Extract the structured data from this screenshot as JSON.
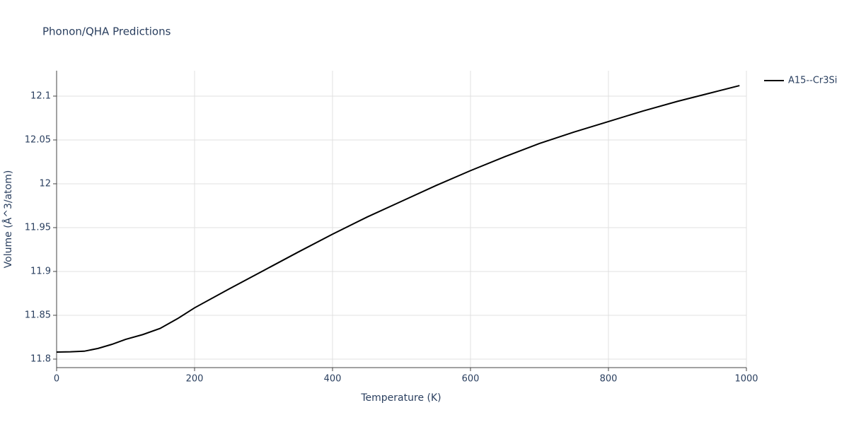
{
  "chart_data": {
    "type": "line",
    "title": "Phonon/QHA Predictions",
    "x_label": "Temperature (K)",
    "y_label": "Volume (Å^3/atom)",
    "x": [
      0,
      20,
      40,
      60,
      80,
      100,
      125,
      150,
      175,
      200,
      250,
      300,
      350,
      400,
      450,
      500,
      550,
      600,
      650,
      700,
      750,
      800,
      850,
      900,
      950,
      990
    ],
    "series": [
      {
        "name": "A15--Cr3Si",
        "color": "#000000",
        "values": [
          11.808,
          11.8083,
          11.809,
          11.8122,
          11.8168,
          11.8225,
          11.828,
          11.835,
          11.846,
          11.8585,
          11.88,
          11.901,
          11.922,
          11.9425,
          11.962,
          11.98,
          11.998,
          12.015,
          12.031,
          12.046,
          12.059,
          12.071,
          12.083,
          12.094,
          12.104,
          12.112
        ]
      }
    ],
    "xlim": [
      0,
      1000
    ],
    "xticks": [
      0,
      200,
      400,
      600,
      800,
      1000
    ],
    "ylim": [
      11.7903,
      12.129
    ],
    "yticks": [
      11.8,
      11.85,
      11.9,
      11.95,
      12,
      12.05,
      12.1
    ],
    "grid": true,
    "legend": "top-right"
  }
}
